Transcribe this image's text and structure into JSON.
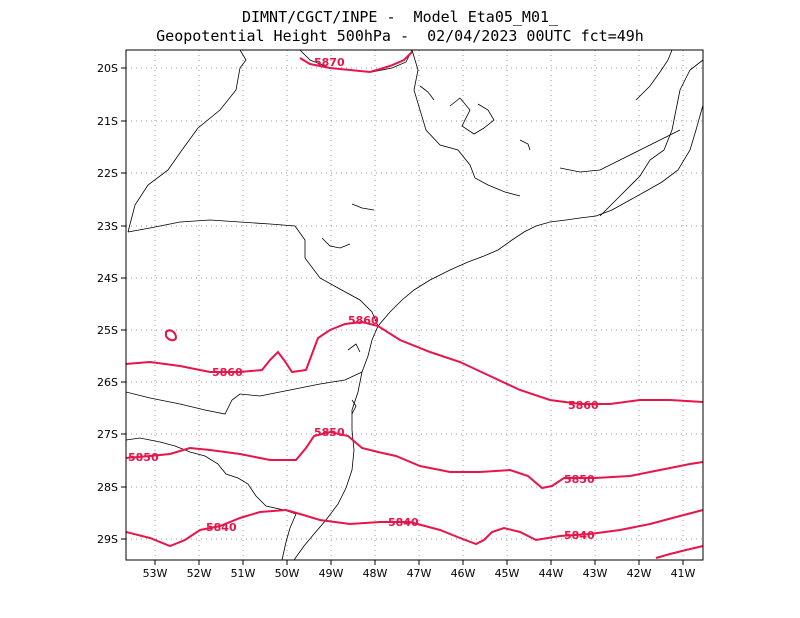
{
  "title": {
    "line1": "DIMNT/CGCT/INPE -  Model Eta05_M01_",
    "line2": "Geopotential Height 500hPa -  02/04/2023 00UTC fct=49h"
  },
  "axes": {
    "lon_labels": [
      "53W",
      "52W",
      "51W",
      "50W",
      "49W",
      "48W",
      "47W",
      "46W",
      "45W",
      "44W",
      "43W",
      "42W",
      "41W"
    ],
    "lat_labels": [
      "20S",
      "21S",
      "22S",
      "23S",
      "24S",
      "25S",
      "26S",
      "27S",
      "28S",
      "29S"
    ]
  },
  "contours": [
    {
      "value": 5870,
      "label": "5870"
    },
    {
      "value": 5860,
      "label": "5860"
    },
    {
      "value": 5850,
      "label": "5850"
    },
    {
      "value": 5840,
      "label": "5840"
    }
  ],
  "colors": {
    "contour": "#e8154a",
    "coast": "#000000",
    "grid": "#888888"
  }
}
